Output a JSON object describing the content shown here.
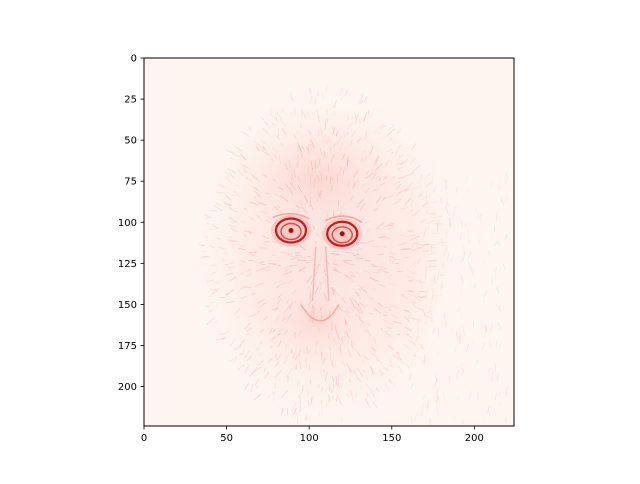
{
  "chart_data": {
    "type": "heatmap",
    "colormap": "Reds",
    "colors": {
      "low": "#fff5f0",
      "high": "#cb181d",
      "axis": "#000000"
    },
    "xlim": [
      0,
      224
    ],
    "ylim": [
      224,
      0
    ],
    "x_ticks": [
      0,
      50,
      100,
      150,
      200
    ],
    "y_ticks": [
      0,
      25,
      50,
      75,
      100,
      125,
      150,
      175,
      200
    ],
    "x_tick_labels": [
      "0",
      "50",
      "100",
      "150",
      "200"
    ],
    "y_tick_labels": [
      "0",
      "25",
      "50",
      "75",
      "100",
      "125",
      "150",
      "175",
      "200"
    ],
    "highlights": [
      {
        "feature": "left eye",
        "x": 89,
        "y": 105,
        "intensity": 1.0
      },
      {
        "feature": "right eye",
        "x": 120,
        "y": 107,
        "intensity": 1.0
      }
    ]
  }
}
